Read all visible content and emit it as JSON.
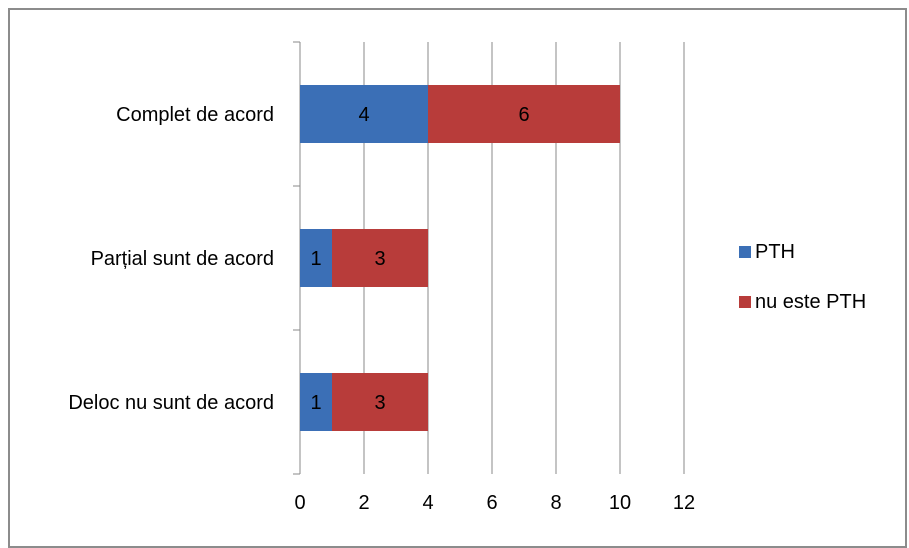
{
  "chart_data": {
    "type": "bar",
    "orientation": "horizontal",
    "stacked": true,
    "categories": [
      "Complet de acord",
      "Parțial sunt de acord",
      "Deloc nu sunt de acord"
    ],
    "series": [
      {
        "name": "PTH",
        "color": "#3b6fb6",
        "values": [
          4,
          1,
          1
        ]
      },
      {
        "name": "nu este PTH",
        "color": "#b83c3a",
        "values": [
          6,
          3,
          3
        ]
      }
    ],
    "data_labels": true,
    "xlim": [
      0,
      12
    ],
    "x_ticks": [
      "0",
      "2",
      "4",
      "6",
      "8",
      "10",
      "12"
    ],
    "grid": "vertical",
    "legend_position": "right"
  }
}
